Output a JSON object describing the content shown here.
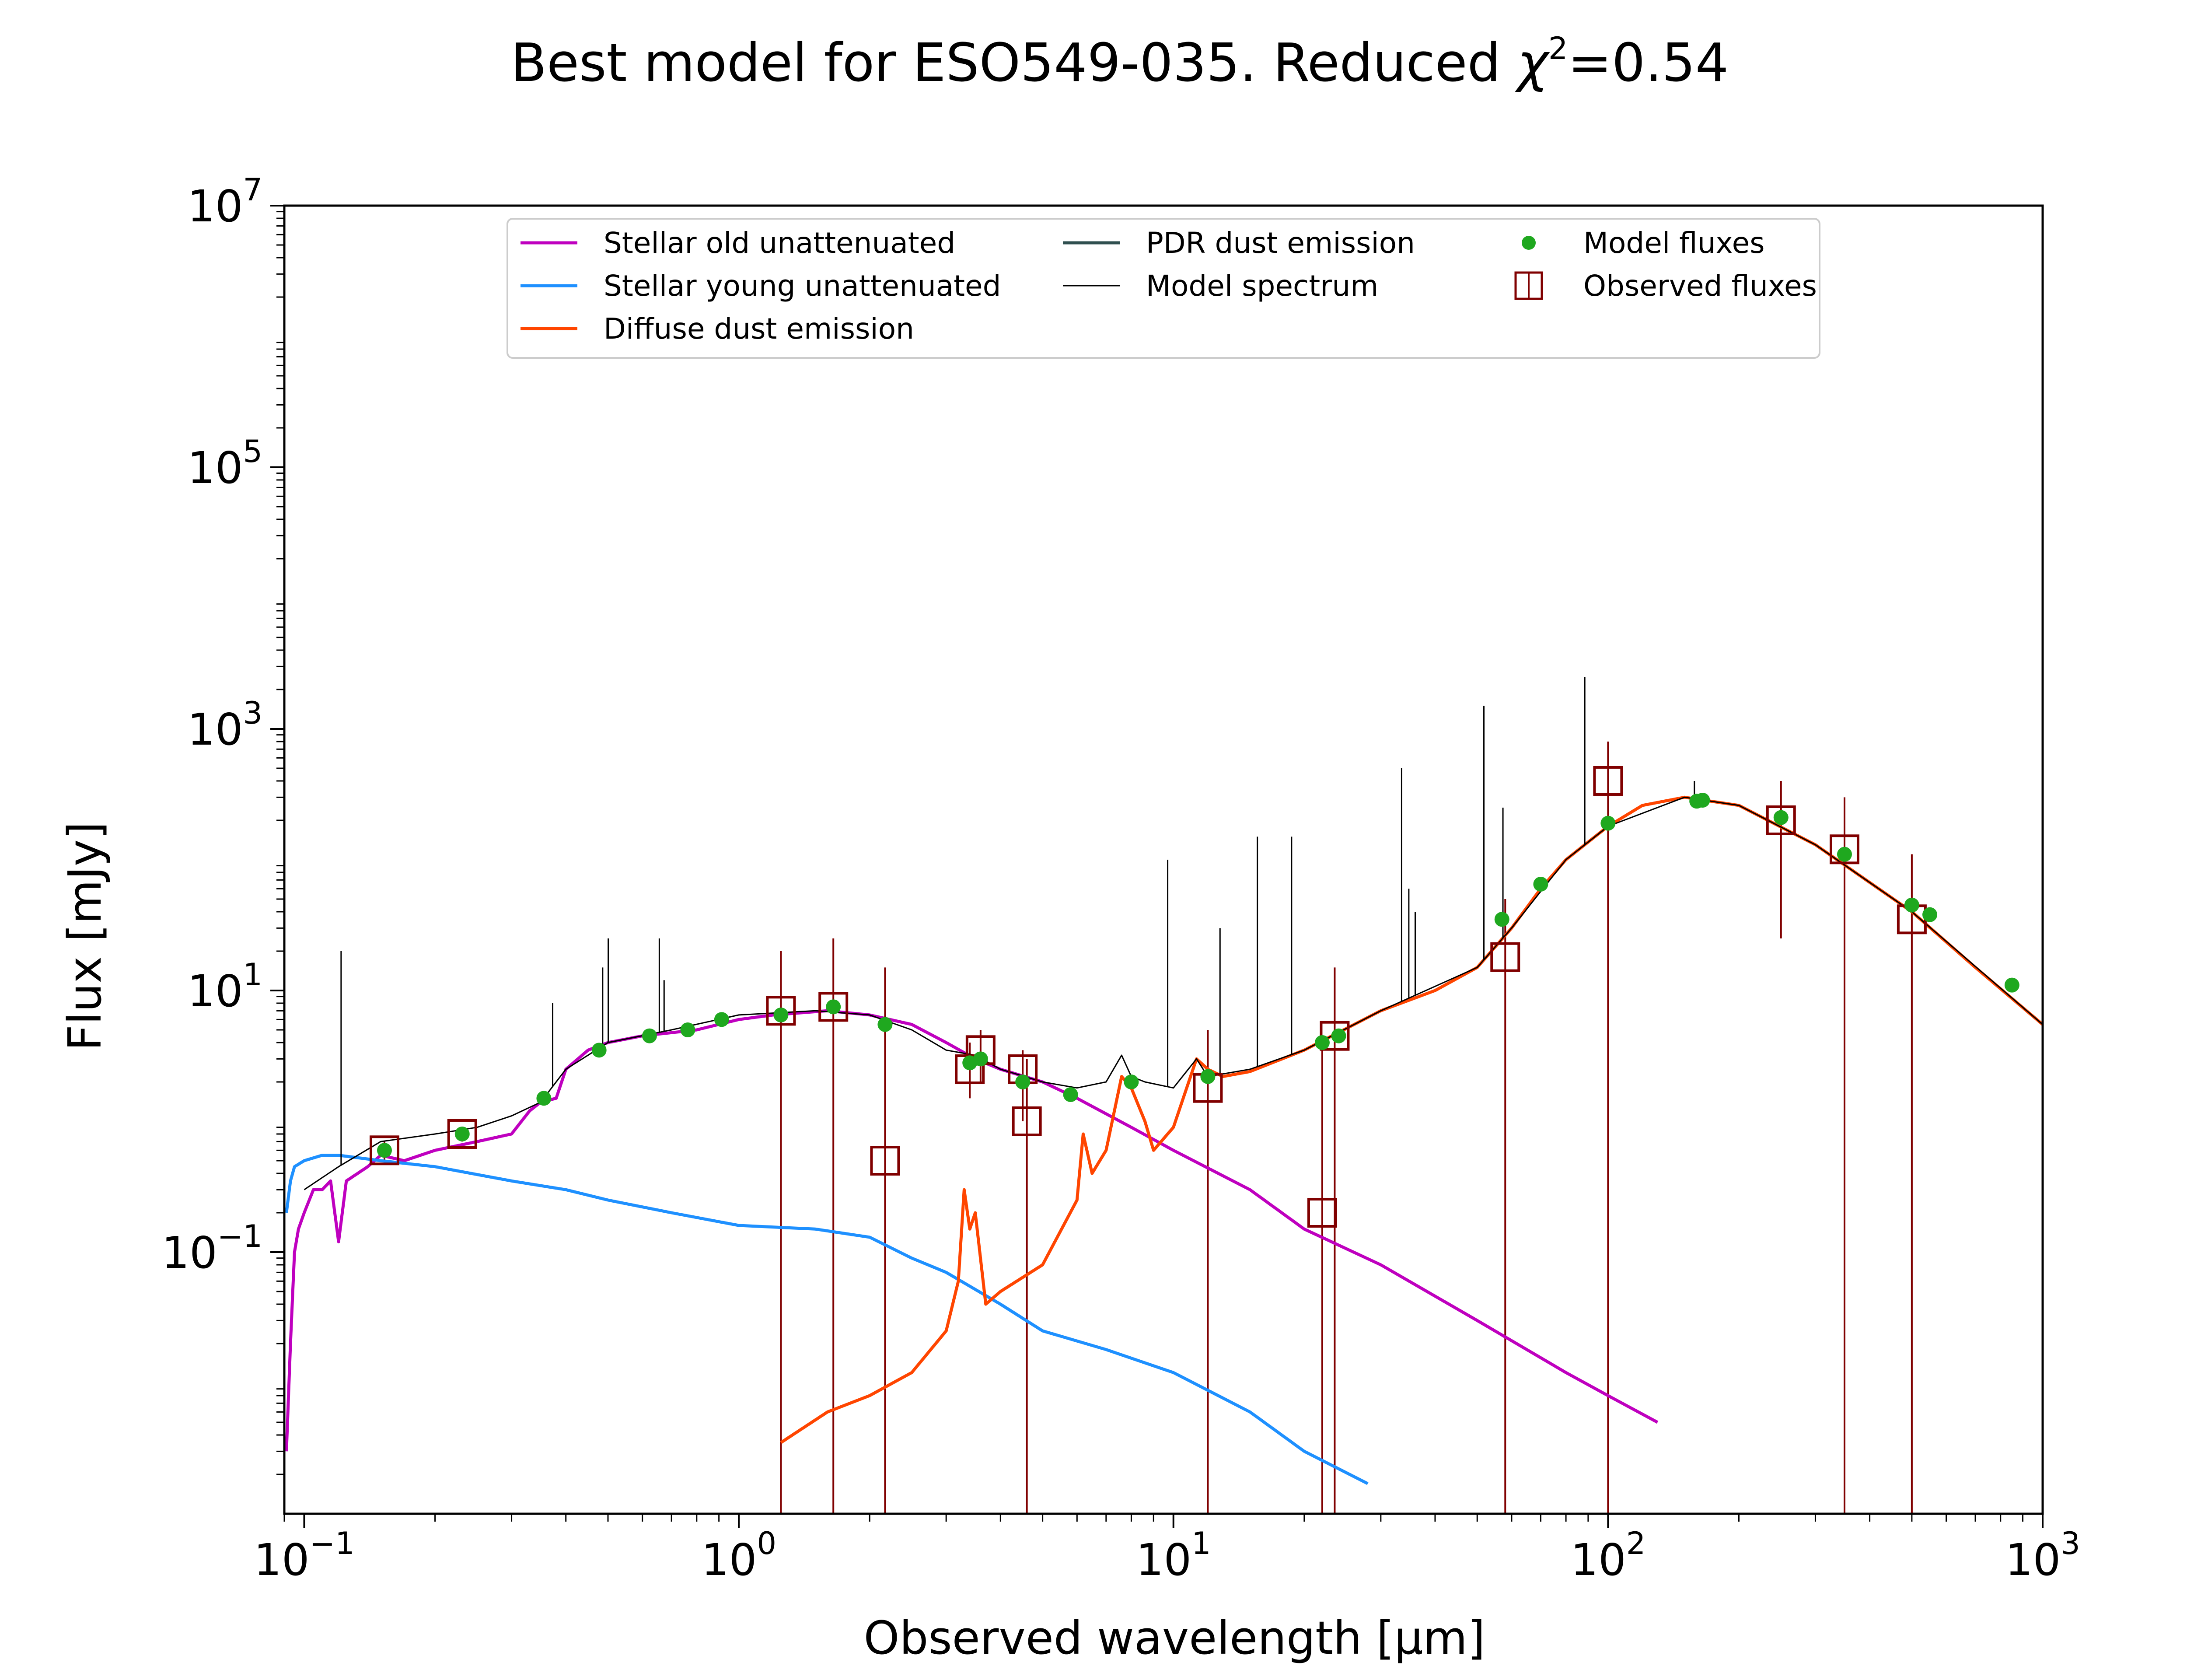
{
  "chart_data": {
    "type": "line",
    "title": "Best model for ESO549-035. Reduced χ²=0.54",
    "title_parts": {
      "main": "Best model for ESO549-035. Reduced ",
      "chi": "χ",
      "sup": "2",
      "tail": "=0.54"
    },
    "xlabel": "Observed wavelength [μm]",
    "ylabel": "Flux [mJy]",
    "x_scale": "log",
    "y_scale": "log",
    "xlim": [
      0.09,
      1000
    ],
    "ylim": [
      0.001,
      10000000
    ],
    "grid": false,
    "legend_position": "top-center",
    "x_ticks": [
      {
        "base": "10",
        "exp": "−1",
        "value": 0.1
      },
      {
        "base": "10",
        "exp": "0",
        "value": 1
      },
      {
        "base": "10",
        "exp": "1",
        "value": 10
      },
      {
        "base": "10",
        "exp": "2",
        "value": 100
      },
      {
        "base": "10",
        "exp": "3",
        "value": 1000
      }
    ],
    "y_ticks": [
      {
        "base": "10",
        "exp": "−1",
        "value": 0.1
      },
      {
        "base": "10",
        "exp": "1",
        "value": 10
      },
      {
        "base": "10",
        "exp": "3",
        "value": 1000
      },
      {
        "base": "10",
        "exp": "5",
        "value": 100000
      },
      {
        "base": "10",
        "exp": "7",
        "value": 10000000
      }
    ],
    "legend": [
      {
        "label": "Stellar old unattenuated",
        "kind": "line",
        "color": "#bf00bf"
      },
      {
        "label": "Stellar young unattenuated",
        "kind": "line",
        "color": "#1e90ff"
      },
      {
        "label": "Diffuse dust emission",
        "kind": "line",
        "color": "#ff4500"
      },
      {
        "label": "PDR dust emission",
        "kind": "line",
        "color": "#2f4f4f"
      },
      {
        "label": "Model spectrum",
        "kind": "line",
        "color": "#000000"
      },
      {
        "label": "Model fluxes",
        "kind": "dot",
        "color": "#1fa81f"
      },
      {
        "label": "Observed fluxes",
        "kind": "square",
        "color": "#800000"
      }
    ],
    "series": [
      {
        "name": "Stellar old unattenuated",
        "color": "#bf00bf",
        "points": [
          [
            0.091,
            0.003
          ],
          [
            0.093,
            0.02
          ],
          [
            0.095,
            0.1
          ],
          [
            0.097,
            0.15
          ],
          [
            0.1,
            0.2
          ],
          [
            0.105,
            0.3
          ],
          [
            0.11,
            0.3
          ],
          [
            0.115,
            0.35
          ],
          [
            0.12,
            0.12
          ],
          [
            0.125,
            0.35
          ],
          [
            0.14,
            0.45
          ],
          [
            0.15,
            0.55
          ],
          [
            0.17,
            0.5
          ],
          [
            0.2,
            0.6
          ],
          [
            0.25,
            0.7
          ],
          [
            0.3,
            0.8
          ],
          [
            0.33,
            1.2
          ],
          [
            0.35,
            1.4
          ],
          [
            0.38,
            1.5
          ],
          [
            0.4,
            2.5
          ],
          [
            0.45,
            3.5
          ],
          [
            0.5,
            4.0
          ],
          [
            0.6,
            4.5
          ],
          [
            0.8,
            5.0
          ],
          [
            1.0,
            6.0
          ],
          [
            1.2,
            6.5
          ],
          [
            1.6,
            7.0
          ],
          [
            2.0,
            6.5
          ],
          [
            2.5,
            5.5
          ],
          [
            3.0,
            4.0
          ],
          [
            3.5,
            3.0
          ],
          [
            4.0,
            2.5
          ],
          [
            5.0,
            2.0
          ],
          [
            6.0,
            1.5
          ],
          [
            8.0,
            0.9
          ],
          [
            10.0,
            0.6
          ],
          [
            15.0,
            0.3
          ],
          [
            20.0,
            0.15
          ],
          [
            30.0,
            0.08
          ],
          [
            50.0,
            0.03
          ],
          [
            80.0,
            0.012
          ],
          [
            100.0,
            0.008
          ],
          [
            130.0,
            0.005
          ]
        ]
      },
      {
        "name": "Stellar young unattenuated",
        "color": "#1e90ff",
        "points": [
          [
            0.091,
            0.2
          ],
          [
            0.093,
            0.35
          ],
          [
            0.095,
            0.45
          ],
          [
            0.1,
            0.5
          ],
          [
            0.11,
            0.55
          ],
          [
            0.12,
            0.55
          ],
          [
            0.15,
            0.5
          ],
          [
            0.2,
            0.45
          ],
          [
            0.3,
            0.35
          ],
          [
            0.4,
            0.3
          ],
          [
            0.5,
            0.25
          ],
          [
            0.7,
            0.2
          ],
          [
            1.0,
            0.16
          ],
          [
            1.5,
            0.15
          ],
          [
            2.0,
            0.13
          ],
          [
            2.5,
            0.09
          ],
          [
            3.0,
            0.07
          ],
          [
            4.0,
            0.04
          ],
          [
            5.0,
            0.025
          ],
          [
            7.0,
            0.018
          ],
          [
            10.0,
            0.012
          ],
          [
            15.0,
            0.006
          ],
          [
            20.0,
            0.003
          ],
          [
            28.0,
            0.0017
          ]
        ]
      },
      {
        "name": "Diffuse dust emission",
        "color": "#ff4500",
        "points": [
          [
            1.25,
            0.0035
          ],
          [
            1.6,
            0.006
          ],
          [
            2.0,
            0.008
          ],
          [
            2.5,
            0.012
          ],
          [
            3.0,
            0.025
          ],
          [
            3.2,
            0.06
          ],
          [
            3.3,
            0.3
          ],
          [
            3.4,
            0.15
          ],
          [
            3.5,
            0.2
          ],
          [
            3.7,
            0.04
          ],
          [
            4.0,
            0.05
          ],
          [
            5.0,
            0.08
          ],
          [
            6.0,
            0.25
          ],
          [
            6.2,
            0.8
          ],
          [
            6.5,
            0.4
          ],
          [
            7.0,
            0.6
          ],
          [
            7.6,
            2.2
          ],
          [
            8.0,
            1.8
          ],
          [
            8.6,
            1.0
          ],
          [
            9.0,
            0.6
          ],
          [
            10.0,
            0.9
          ],
          [
            11.3,
            3.0
          ],
          [
            12.0,
            2.5
          ],
          [
            13.0,
            2.2
          ],
          [
            15.0,
            2.4
          ],
          [
            20.0,
            3.5
          ],
          [
            30.0,
            7.0
          ],
          [
            40.0,
            10.0
          ],
          [
            50.0,
            15.0
          ],
          [
            60.0,
            30.0
          ],
          [
            70.0,
            60.0
          ],
          [
            80.0,
            100.0
          ],
          [
            100.0,
            180.0
          ],
          [
            120.0,
            260.0
          ],
          [
            150.0,
            300.0
          ],
          [
            200.0,
            260.0
          ],
          [
            300.0,
            130.0
          ],
          [
            500.0,
            40.0
          ],
          [
            700.0,
            15.0
          ],
          [
            1000.0,
            5.5
          ]
        ]
      },
      {
        "name": "Model spectrum",
        "color": "#000000",
        "points": [
          [
            0.1,
            0.3
          ],
          [
            0.12,
            0.45
          ],
          [
            0.15,
            0.7
          ],
          [
            0.2,
            0.8
          ],
          [
            0.25,
            0.9
          ],
          [
            0.3,
            1.1
          ],
          [
            0.35,
            1.4
          ],
          [
            0.4,
            2.5
          ],
          [
            0.5,
            4.0
          ],
          [
            0.7,
            5.0
          ],
          [
            1.0,
            6.5
          ],
          [
            1.5,
            7.0
          ],
          [
            2.0,
            6.5
          ],
          [
            2.5,
            5.0
          ],
          [
            3.0,
            3.5
          ],
          [
            3.5,
            3.2
          ],
          [
            4.0,
            2.5
          ],
          [
            5.0,
            2.0
          ],
          [
            6.0,
            1.8
          ],
          [
            7.0,
            2.0
          ],
          [
            7.6,
            3.2
          ],
          [
            8.0,
            2.2
          ],
          [
            8.6,
            2.0
          ],
          [
            10.0,
            1.8
          ],
          [
            11.3,
            3.0
          ],
          [
            12.0,
            2.2
          ],
          [
            15.0,
            2.5
          ],
          [
            20.0,
            3.5
          ],
          [
            30.0,
            7.0
          ],
          [
            50.0,
            15.0
          ],
          [
            60.0,
            30.0
          ],
          [
            80.0,
            100.0
          ],
          [
            100.0,
            180.0
          ],
          [
            150.0,
            300.0
          ],
          [
            200.0,
            260.0
          ],
          [
            300.0,
            130.0
          ],
          [
            500.0,
            40.0
          ],
          [
            1000.0,
            5.5
          ]
        ]
      }
    ],
    "emission_lines": [
      [
        0.1216,
        20.0
      ],
      [
        0.373,
        8.0
      ],
      [
        0.4861,
        15.0
      ],
      [
        0.5007,
        25.0
      ],
      [
        0.6563,
        25.0
      ],
      [
        0.6731,
        12.0
      ],
      [
        9.7,
        100.0
      ],
      [
        12.8,
        30.0
      ],
      [
        15.6,
        150.0
      ],
      [
        18.7,
        150.0
      ],
      [
        33.5,
        500.0
      ],
      [
        34.8,
        60.0
      ],
      [
        36.0,
        40.0
      ],
      [
        51.8,
        1500.0
      ],
      [
        57.3,
        250.0
      ],
      [
        88.4,
        2500.0
      ],
      [
        158.0,
        400.0
      ]
    ],
    "model_fluxes": [
      [
        0.153,
        0.6
      ],
      [
        0.231,
        0.8
      ],
      [
        0.356,
        1.5
      ],
      [
        0.477,
        3.5
      ],
      [
        0.623,
        4.5
      ],
      [
        0.763,
        5.0
      ],
      [
        0.913,
        6.0
      ],
      [
        1.25,
        6.5
      ],
      [
        1.65,
        7.5
      ],
      [
        2.17,
        5.5
      ],
      [
        3.4,
        2.8
      ],
      [
        3.6,
        3.0
      ],
      [
        4.5,
        2.0
      ],
      [
        5.8,
        1.6
      ],
      [
        8.0,
        2.0
      ],
      [
        12.0,
        2.2
      ],
      [
        22.0,
        4.0
      ],
      [
        24.0,
        4.5
      ],
      [
        57.0,
        35.0
      ],
      [
        70.0,
        65.0
      ],
      [
        100.0,
        190.0
      ],
      [
        160.0,
        280.0
      ],
      [
        165.0,
        285.0
      ],
      [
        250.0,
        210.0
      ],
      [
        350.0,
        110.0
      ],
      [
        500.0,
        45.0
      ],
      [
        550.0,
        38.0
      ],
      [
        850.0,
        11.0
      ]
    ],
    "observed_fluxes": [
      {
        "x": 0.153,
        "y": 0.6,
        "lo": 0.5,
        "hi": 0.7
      },
      {
        "x": 0.231,
        "y": 0.8,
        "lo": 0.7,
        "hi": 0.9
      },
      {
        "x": 1.25,
        "y": 7.0,
        "lo": 0.001,
        "hi": 20.0
      },
      {
        "x": 1.65,
        "y": 7.5,
        "lo": 0.001,
        "hi": 25.0
      },
      {
        "x": 2.17,
        "y": 0.5,
        "lo": 0.001,
        "hi": 15.0
      },
      {
        "x": 3.4,
        "y": 2.5,
        "lo": 1.5,
        "hi": 4.0
      },
      {
        "x": 3.6,
        "y": 3.5,
        "lo": 2.0,
        "hi": 5.0
      },
      {
        "x": 4.5,
        "y": 2.5,
        "lo": 1.0,
        "hi": 3.5
      },
      {
        "x": 4.6,
        "y": 1.0,
        "lo": 0.001,
        "hi": 3.0
      },
      {
        "x": 12.0,
        "y": 1.8,
        "lo": 0.001,
        "hi": 5.0
      },
      {
        "x": 22.0,
        "y": 0.2,
        "lo": 0.001,
        "hi": 4.0
      },
      {
        "x": 23.5,
        "y": 4.5,
        "lo": 0.001,
        "hi": 15.0
      },
      {
        "x": 58.0,
        "y": 18.0,
        "lo": 0.001,
        "hi": 50.0
      },
      {
        "x": 100.0,
        "y": 400.0,
        "lo": 0.001,
        "hi": 800.0
      },
      {
        "x": 250.0,
        "y": 200.0,
        "lo": 25.0,
        "hi": 400.0
      },
      {
        "x": 350.0,
        "y": 120.0,
        "lo": 0.001,
        "hi": 300.0
      },
      {
        "x": 500.0,
        "y": 35.0,
        "lo": 0.001,
        "hi": 110.0
      }
    ]
  }
}
